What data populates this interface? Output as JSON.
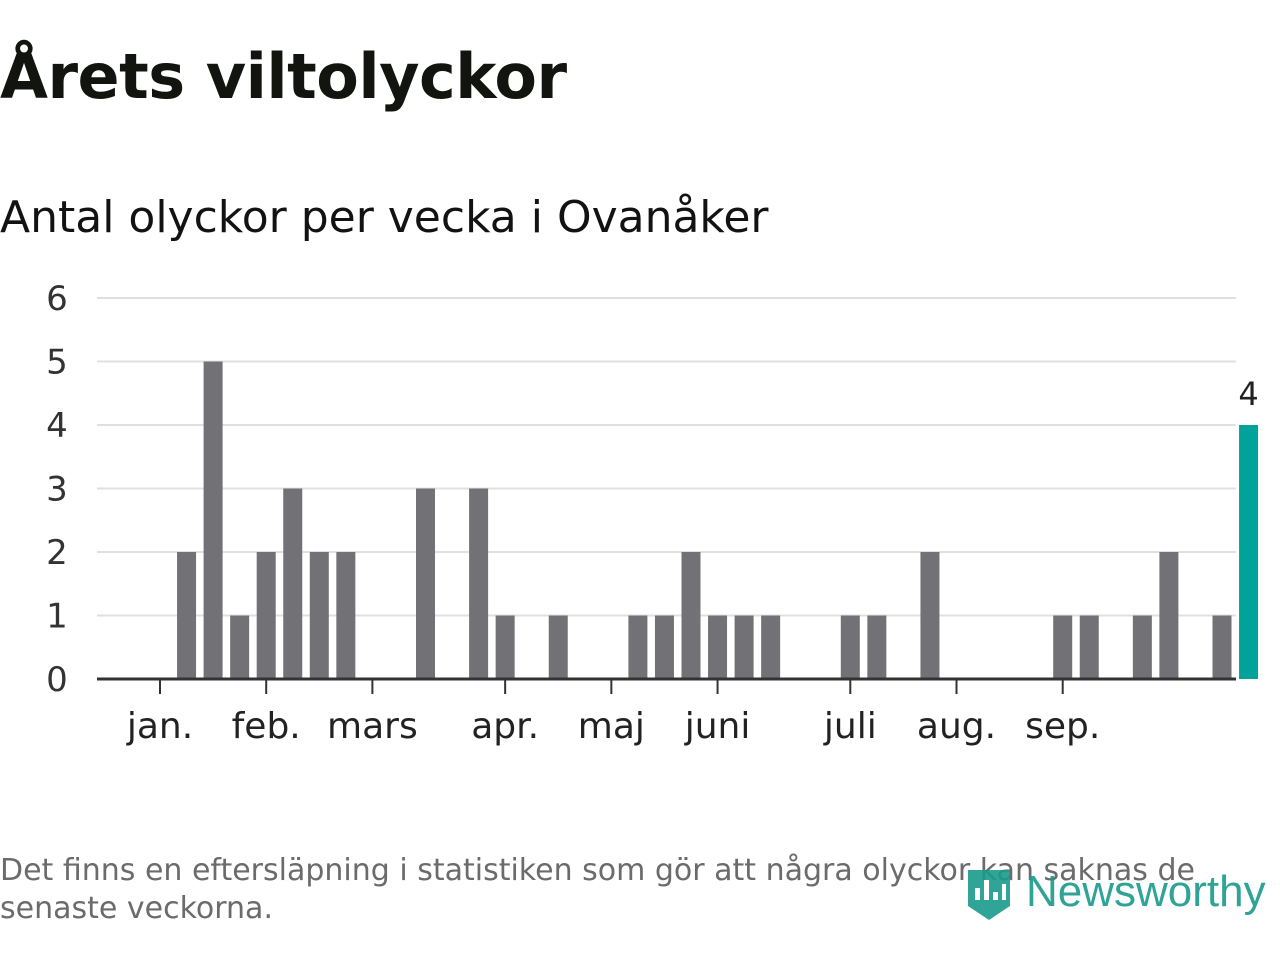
{
  "title": "Årets viltolyckor",
  "subtitle": "Antal olyckor per vecka i Ovanåker",
  "footnote": "Det finns en eftersläpning i statistiken som gör att några olyckor kan saknas de senaste veckorna.",
  "brand": {
    "name": "Newsworthy",
    "icon": "newsworthy-logo-icon"
  },
  "colors": {
    "bar": "#727176",
    "highlight": "#00a39a",
    "grid": "#e0e0e0",
    "axis": "#333333",
    "brand": "#1a9a8c"
  },
  "chart_data": {
    "type": "bar",
    "title": "Antal olyckor per vecka i Ovanåker",
    "xlabel": "",
    "ylabel": "",
    "ylim": [
      0,
      6
    ],
    "yticks": [
      0,
      1,
      2,
      3,
      4,
      5,
      6
    ],
    "grid": true,
    "weeks": [
      1,
      2,
      3,
      4,
      5,
      6,
      7,
      8,
      9,
      10,
      11,
      12,
      13,
      14,
      15,
      16,
      17,
      18,
      19,
      20,
      21,
      22,
      23,
      24,
      25,
      26,
      27,
      28,
      29,
      30,
      31,
      32,
      33,
      34,
      35,
      36,
      37,
      38,
      39,
      40,
      41,
      42
    ],
    "values": [
      0,
      2,
      5,
      1,
      2,
      3,
      2,
      2,
      0,
      0,
      3,
      0,
      3,
      1,
      0,
      1,
      0,
      0,
      1,
      1,
      2,
      1,
      1,
      1,
      0,
      0,
      1,
      1,
      0,
      2,
      0,
      0,
      0,
      0,
      1,
      1,
      0,
      1,
      2,
      0,
      1,
      4
    ],
    "highlight_index": 41,
    "highlight_label": "4",
    "month_ticks": [
      {
        "label": "jan.",
        "week": 1
      },
      {
        "label": "feb.",
        "week": 5
      },
      {
        "label": "mars",
        "week": 9
      },
      {
        "label": "apr.",
        "week": 14
      },
      {
        "label": "maj",
        "week": 18
      },
      {
        "label": "juni",
        "week": 22
      },
      {
        "label": "juli",
        "week": 27
      },
      {
        "label": "aug.",
        "week": 31
      },
      {
        "label": "sep.",
        "week": 35
      }
    ]
  }
}
